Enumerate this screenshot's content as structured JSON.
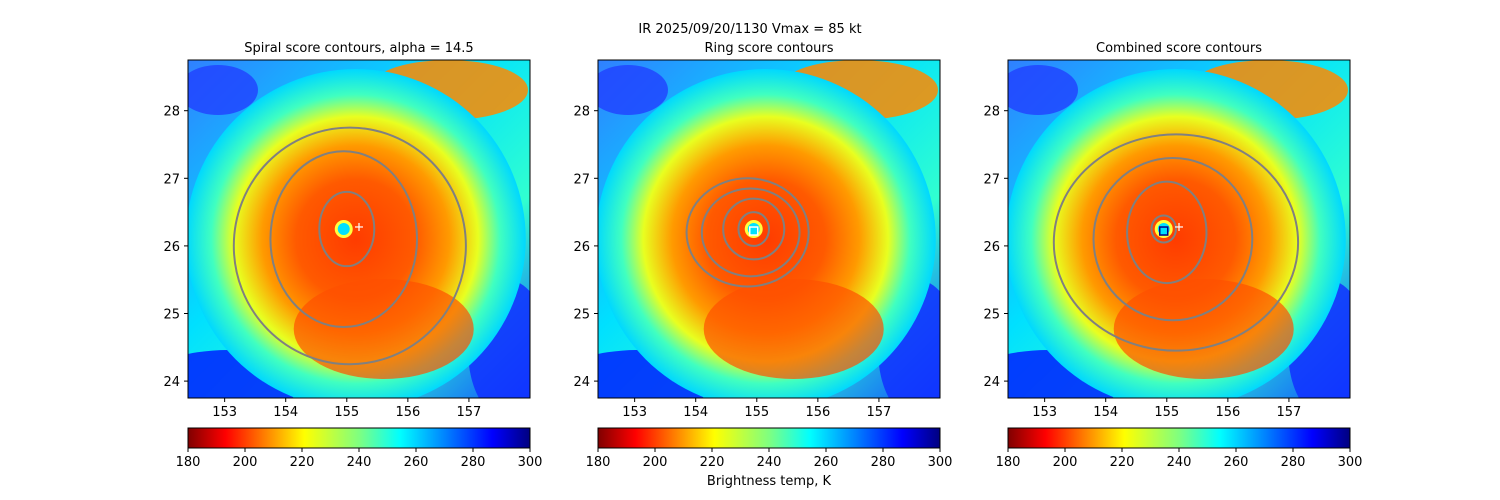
{
  "figure": {
    "suptitle": "IR  2025/09/20/1130    Vmax = 85 kt",
    "colorbar_label": "Brightness temp, K"
  },
  "chart_data": [
    {
      "type": "heatmap",
      "title": "Spiral score contours, alpha = 14.5",
      "x_ticks": [
        153,
        154,
        155,
        156,
        157
      ],
      "y_ticks": [
        24,
        25,
        26,
        27,
        28
      ],
      "xlim": [
        152.4,
        158.0
      ],
      "ylim": [
        23.75,
        28.75
      ],
      "colorbar": {
        "ticks": [
          180,
          200,
          220,
          240,
          260,
          280,
          300
        ],
        "range": [
          180,
          300
        ],
        "colormap": "jet_r"
      },
      "storm_center": {
        "lon": 154.95,
        "lat": 26.25
      },
      "marker": {
        "type": "plus",
        "lon": 155.2,
        "lat": 26.28,
        "color": "#ffffff"
      },
      "contour_color": "#808080",
      "contours": [
        {
          "kind": "ellipse",
          "cx": 155.0,
          "cy": 26.25,
          "rx": 0.45,
          "ry": 0.55
        },
        {
          "kind": "ellipse",
          "cx": 154.95,
          "cy": 26.1,
          "rx": 1.2,
          "ry": 1.3
        },
        {
          "kind": "ellipse",
          "cx": 155.05,
          "cy": 26.0,
          "rx": 1.9,
          "ry": 1.75
        }
      ]
    },
    {
      "type": "heatmap",
      "title": "Ring score contours",
      "x_ticks": [
        153,
        154,
        155,
        156,
        157
      ],
      "y_ticks": [
        24,
        25,
        26,
        27,
        28
      ],
      "xlim": [
        152.4,
        158.0
      ],
      "ylim": [
        23.75,
        28.75
      ],
      "colorbar": {
        "ticks": [
          180,
          200,
          220,
          240,
          260,
          280,
          300
        ],
        "range": [
          180,
          300
        ],
        "colormap": "jet_r"
      },
      "storm_center": {
        "lon": 154.95,
        "lat": 26.25
      },
      "marker": {
        "type": "square",
        "lon": 154.95,
        "lat": 26.22,
        "color": "#ffffff"
      },
      "contour_color": "#808080",
      "contours": [
        {
          "kind": "ellipse",
          "cx": 154.95,
          "cy": 26.25,
          "rx": 0.25,
          "ry": 0.25
        },
        {
          "kind": "ellipse",
          "cx": 154.95,
          "cy": 26.25,
          "rx": 0.5,
          "ry": 0.45
        },
        {
          "kind": "ellipse",
          "cx": 154.9,
          "cy": 26.2,
          "rx": 0.8,
          "ry": 0.65
        },
        {
          "kind": "ellipse",
          "cx": 154.85,
          "cy": 26.2,
          "rx": 1.0,
          "ry": 0.8
        }
      ]
    },
    {
      "type": "heatmap",
      "title": "Combined score contours",
      "x_ticks": [
        153,
        154,
        155,
        156,
        157
      ],
      "y_ticks": [
        24,
        25,
        26,
        27,
        28
      ],
      "xlim": [
        152.4,
        158.0
      ],
      "ylim": [
        23.75,
        28.75
      ],
      "colorbar": {
        "ticks": [
          180,
          200,
          220,
          240,
          260,
          280,
          300
        ],
        "range": [
          180,
          300
        ],
        "colormap": "jet_r"
      },
      "storm_center": {
        "lon": 154.95,
        "lat": 26.25
      },
      "marker": {
        "type": "plus",
        "lon": 155.2,
        "lat": 26.28,
        "color": "#ffffff"
      },
      "marker2": {
        "type": "square",
        "lon": 154.95,
        "lat": 26.22,
        "color": "#00008b"
      },
      "contour_color": "#808080",
      "contours": [
        {
          "kind": "ellipse",
          "cx": 154.95,
          "cy": 26.25,
          "rx": 0.2,
          "ry": 0.2
        },
        {
          "kind": "ellipse",
          "cx": 155.0,
          "cy": 26.2,
          "rx": 0.65,
          "ry": 0.75
        },
        {
          "kind": "ellipse",
          "cx": 155.1,
          "cy": 26.1,
          "rx": 1.3,
          "ry": 1.2
        },
        {
          "kind": "ellipse",
          "cx": 155.15,
          "cy": 26.05,
          "rx": 2.0,
          "ry": 1.6
        }
      ]
    }
  ]
}
